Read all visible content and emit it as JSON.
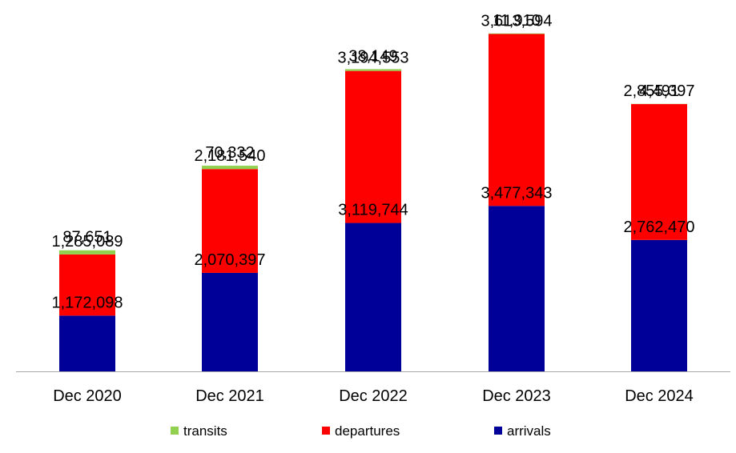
{
  "chart_data": {
    "type": "bar",
    "stacked": true,
    "categories": [
      "Dec 2020",
      "Dec 2021",
      "Dec 2022",
      "Dec 2023",
      "Dec 2024"
    ],
    "series": [
      {
        "name": "arrivals",
        "color": "#000099",
        "values": [
          1172098,
          2070397,
          3119744,
          3477343,
          2762470
        ],
        "labels": [
          "1,172,098",
          "2,070,397",
          "3,119,744",
          "3,477,343",
          "2,762,470"
        ]
      },
      {
        "name": "departures",
        "color": "#ff0000",
        "values": [
          1285089,
          2181540,
          3194553,
          3613594,
          2855397
        ],
        "labels": [
          "1,285,089",
          "2,181,540",
          "3,194,553",
          "3,613,594",
          "2,855,397"
        ]
      },
      {
        "name": "transits",
        "color": "#92d050",
        "values": [
          87651,
          70332,
          38149,
          11910,
          4491
        ],
        "labels": [
          "87,651",
          "70,332",
          "38,149",
          "11,910",
          "4,491"
        ]
      }
    ],
    "legend_order": [
      "transits",
      "departures",
      "arrivals"
    ],
    "legend_position": "bottom",
    "ylim": [
      0,
      7200000
    ],
    "grid": false,
    "title": "",
    "xlabel": "",
    "ylabel": ""
  }
}
